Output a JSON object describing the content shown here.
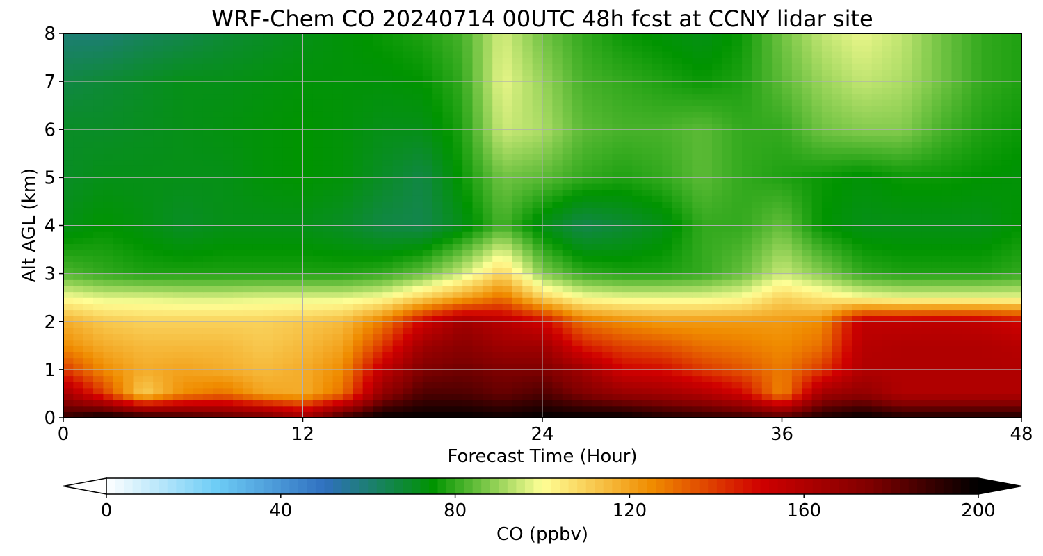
{
  "chart_data": {
    "type": "heatmap",
    "title": "WRF-Chem CO  20240714 00UTC 48h fcst at CCNY lidar site",
    "xlabel": "Forecast Time (Hour)",
    "ylabel": "Alt AGL (km)",
    "xlim": [
      0,
      48
    ],
    "ylim": [
      0,
      8
    ],
    "xticks": [
      0,
      12,
      24,
      36,
      48
    ],
    "yticks": [
      0,
      1,
      2,
      3,
      4,
      5,
      6,
      7,
      8
    ],
    "grid": true,
    "x": [
      0,
      2,
      4,
      6,
      8,
      10,
      12,
      14,
      16,
      18,
      20,
      22,
      24,
      26,
      28,
      30,
      32,
      34,
      36,
      38,
      40,
      42,
      44,
      46,
      48
    ],
    "y": [
      0,
      0.5,
      1,
      1.5,
      2,
      2.5,
      3,
      4,
      5,
      6,
      7,
      8
    ],
    "z": [
      [
        190,
        200,
        195,
        190,
        185,
        180,
        165,
        190,
        200,
        200,
        200,
        198,
        200,
        200,
        200,
        195,
        192,
        190,
        185,
        195,
        200,
        195,
        195,
        195,
        195
      ],
      [
        165,
        140,
        110,
        125,
        130,
        120,
        118,
        130,
        170,
        185,
        185,
        180,
        185,
        175,
        168,
        165,
        160,
        150,
        125,
        165,
        170,
        160,
        160,
        160,
        160
      ],
      [
        140,
        125,
        118,
        120,
        118,
        115,
        118,
        125,
        155,
        175,
        178,
        175,
        175,
        165,
        150,
        148,
        140,
        135,
        128,
        140,
        160,
        160,
        160,
        160,
        160
      ],
      [
        125,
        118,
        115,
        115,
        115,
        112,
        115,
        120,
        140,
        165,
        172,
        165,
        165,
        145,
        138,
        135,
        130,
        128,
        125,
        130,
        158,
        160,
        160,
        160,
        158
      ],
      [
        118,
        112,
        110,
        110,
        110,
        110,
        112,
        115,
        128,
        150,
        165,
        158,
        150,
        130,
        125,
        122,
        122,
        122,
        122,
        125,
        155,
        155,
        156,
        155,
        150
      ],
      [
        100,
        97,
        97,
        96,
        96,
        97,
        97,
        97,
        100,
        110,
        120,
        130,
        110,
        100,
        98,
        98,
        98,
        100,
        110,
        105,
        100,
        98,
        98,
        98,
        98
      ],
      [
        83,
        80,
        78,
        78,
        78,
        78,
        78,
        78,
        80,
        85,
        95,
        110,
        88,
        80,
        78,
        78,
        80,
        85,
        95,
        88,
        80,
        78,
        78,
        78,
        80
      ],
      [
        72,
        75,
        73,
        70,
        72,
        72,
        72,
        70,
        66,
        65,
        72,
        82,
        72,
        65,
        68,
        72,
        80,
        80,
        85,
        75,
        72,
        72,
        72,
        72,
        75
      ],
      [
        70,
        72,
        72,
        72,
        72,
        74,
        75,
        74,
        70,
        66,
        76,
        86,
        84,
        80,
        78,
        80,
        84,
        80,
        78,
        76,
        74,
        76,
        76,
        75,
        74
      ],
      [
        70,
        70,
        71,
        72,
        73,
        74,
        75,
        74,
        72,
        72,
        78,
        95,
        92,
        84,
        82,
        82,
        84,
        80,
        80,
        86,
        88,
        88,
        82,
        78,
        76
      ],
      [
        66,
        68,
        70,
        72,
        72,
        73,
        74,
        74,
        74,
        75,
        80,
        98,
        90,
        82,
        80,
        78,
        76,
        78,
        84,
        90,
        94,
        92,
        86,
        80,
        78
      ],
      [
        60,
        60,
        63,
        65,
        68,
        70,
        72,
        74,
        76,
        78,
        82,
        96,
        86,
        80,
        76,
        74,
        72,
        76,
        86,
        94,
        98,
        94,
        86,
        80,
        78
      ]
    ],
    "colorbar": {
      "label": "CO  (ppbv)",
      "min": 0,
      "max": 200,
      "ticks": [
        0,
        40,
        80,
        120,
        160,
        200
      ],
      "extend": "both",
      "colors": [
        "#ffffff",
        "#6ecdf6",
        "#3070c0",
        "#009400",
        "#ffff96",
        "#f08c00",
        "#d00000",
        "#800000",
        "#000000"
      ]
    }
  }
}
